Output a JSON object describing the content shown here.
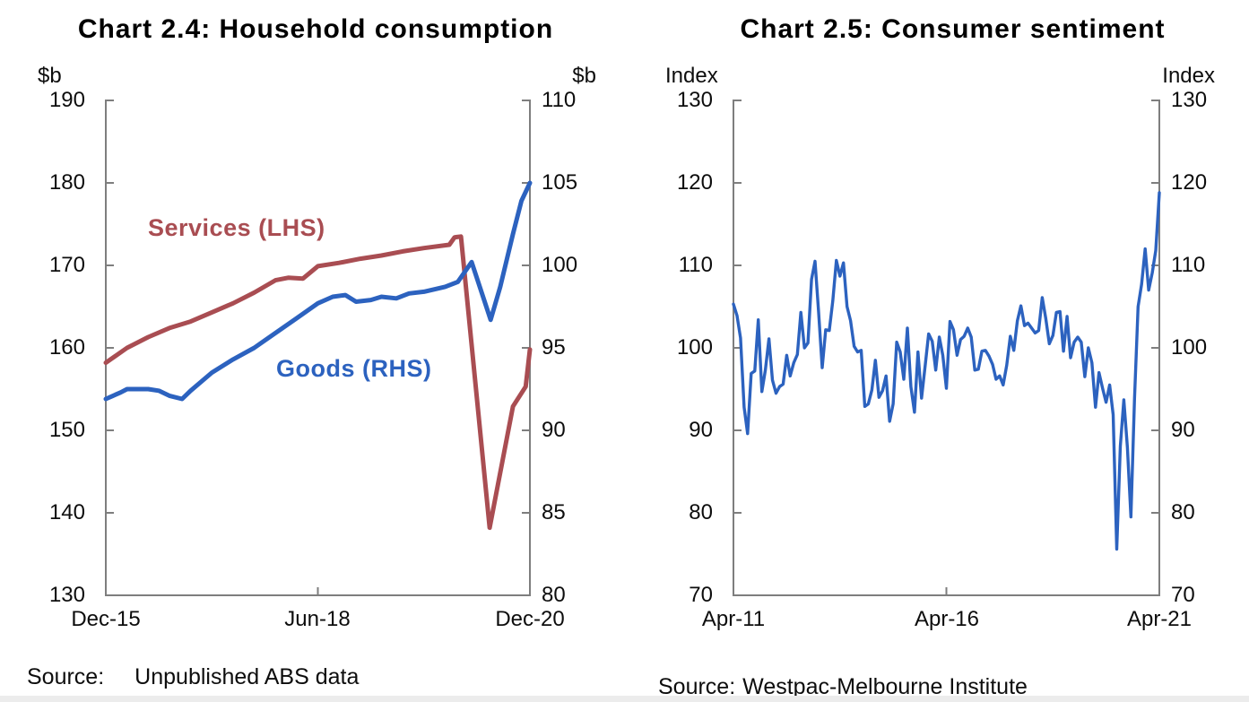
{
  "page": {
    "background": "#ffffff",
    "bottom_strip_color": "#ececec"
  },
  "chart_data": [
    {
      "type": "line",
      "title": "Chart 2.4: Household consumption",
      "left_axis": {
        "unit": "$b",
        "min": 130,
        "max": 190,
        "ticks": [
          190,
          180,
          170,
          160,
          150,
          140,
          130
        ]
      },
      "right_axis": {
        "unit": "$b",
        "min": 80,
        "max": 110,
        "ticks": [
          110,
          105,
          100,
          95,
          90,
          85,
          80
        ]
      },
      "x_axis": {
        "min": 0,
        "max": 20,
        "unit": "quarters from Dec-2015",
        "labels": [
          "Dec-15",
          "Jun-18",
          "Dec-20"
        ]
      },
      "grid": false,
      "annotations": [
        {
          "text": "Services (LHS)",
          "color": "#a94d52"
        },
        {
          "text": "Goods (RHS)",
          "color": "#2c62bf"
        }
      ],
      "series": [
        {
          "name": "Services (LHS)",
          "axis": "left",
          "color": "#a94d52",
          "points": [
            [
              0,
              158.2
            ],
            [
              1,
              160.0
            ],
            [
              2,
              161.3
            ],
            [
              3,
              162.4
            ],
            [
              4,
              163.2
            ],
            [
              5,
              164.3
            ],
            [
              6,
              165.4
            ],
            [
              7,
              166.7
            ],
            [
              8,
              168.2
            ],
            [
              8.6,
              168.5
            ],
            [
              9.3,
              168.4
            ],
            [
              10,
              169.9
            ],
            [
              11,
              170.3
            ],
            [
              12,
              170.8
            ],
            [
              13,
              171.2
            ],
            [
              14,
              171.7
            ],
            [
              15,
              172.1
            ],
            [
              16.2,
              172.5
            ],
            [
              16.45,
              173.4
            ],
            [
              16.75,
              173.5
            ],
            [
              18.1,
              138.2
            ],
            [
              19.2,
              152.9
            ],
            [
              19.8,
              155.3
            ],
            [
              20,
              159.8
            ]
          ]
        },
        {
          "name": "Goods (RHS)",
          "axis": "right",
          "color": "#2c62bf",
          "points": [
            [
              0,
              91.9
            ],
            [
              0.7,
              92.3
            ],
            [
              1,
              92.5
            ],
            [
              2,
              92.5
            ],
            [
              2.5,
              92.4
            ],
            [
              3,
              92.1
            ],
            [
              3.6,
              91.9
            ],
            [
              4,
              92.4
            ],
            [
              5,
              93.5
            ],
            [
              6,
              94.3
            ],
            [
              7,
              95.0
            ],
            [
              8,
              95.9
            ],
            [
              9,
              96.8
            ],
            [
              10,
              97.7
            ],
            [
              10.7,
              98.1
            ],
            [
              11.3,
              98.2
            ],
            [
              11.8,
              97.8
            ],
            [
              12.5,
              97.9
            ],
            [
              13,
              98.1
            ],
            [
              13.7,
              98.0
            ],
            [
              14.3,
              98.3
            ],
            [
              15,
              98.4
            ],
            [
              16,
              98.7
            ],
            [
              16.6,
              99.0
            ],
            [
              17.25,
              100.2
            ],
            [
              18.15,
              96.7
            ],
            [
              18.6,
              98.7
            ],
            [
              19.2,
              101.9
            ],
            [
              19.6,
              103.9
            ],
            [
              20,
              105.0
            ]
          ]
        }
      ],
      "source": {
        "label": "Source:",
        "text": "Unpublished ABS data"
      }
    },
    {
      "type": "line",
      "title": "Chart 2.5: Consumer sentiment",
      "left_axis": {
        "unit": "Index",
        "min": 70,
        "max": 130,
        "ticks": [
          130,
          120,
          110,
          100,
          90,
          80,
          70
        ]
      },
      "right_axis": {
        "unit": "Index",
        "min": 70,
        "max": 130,
        "ticks": [
          130,
          120,
          110,
          100,
          90,
          80,
          70
        ]
      },
      "x_axis": {
        "min": 0,
        "max": 120,
        "unit": "months from Apr-2011",
        "labels": [
          "Apr-11",
          "Apr-16",
          "Apr-21"
        ]
      },
      "grid": false,
      "annotations": [],
      "series": [
        {
          "name": "Consumer sentiment",
          "axis": "left",
          "color": "#2c62bf",
          "values": [
            105.3,
            103.9,
            101.2,
            92.8,
            89.6,
            96.9,
            97.2,
            103.4,
            94.7,
            97.3,
            101.1,
            96.1,
            94.5,
            95.3,
            95.6,
            99.1,
            96.6,
            98.2,
            99.2,
            104.3,
            100.0,
            100.6,
            108.3,
            110.5,
            104.3,
            97.6,
            102.2,
            102.1,
            105.7,
            110.6,
            108.7,
            110.3,
            105.0,
            103.3,
            100.2,
            99.5,
            99.7,
            92.9,
            93.2,
            94.9,
            98.5,
            94.0,
            94.8,
            96.6,
            91.1,
            93.2,
            100.7,
            99.5,
            96.2,
            102.4,
            95.3,
            92.2,
            99.5,
            93.9,
            97.8,
            101.7,
            100.8,
            97.3,
            101.3,
            99.1,
            95.1,
            103.2,
            102.2,
            99.1,
            101.0,
            101.4,
            102.4,
            101.3,
            97.3,
            97.4,
            99.6,
            99.7,
            99.0,
            98.0,
            96.2,
            96.6,
            95.5,
            97.9,
            101.4,
            99.7,
            103.3,
            105.1,
            102.7,
            103.0,
            102.4,
            101.8,
            102.1,
            106.1,
            103.6,
            100.5,
            101.5,
            104.3,
            104.4,
            99.6,
            103.8,
            98.8,
            100.7,
            101.3,
            100.7,
            96.5,
            100.0,
            98.2,
            92.8,
            97.0,
            95.1,
            93.4,
            95.5,
            91.9,
            75.6,
            88.1,
            93.7,
            87.9,
            79.5,
            93.8,
            105.0,
            107.7,
            112.0,
            107.0,
            109.1,
            111.8,
            118.8
          ]
        }
      ],
      "source": {
        "label": "Source:",
        "text": "Westpac-Melbourne Institute"
      }
    }
  ]
}
